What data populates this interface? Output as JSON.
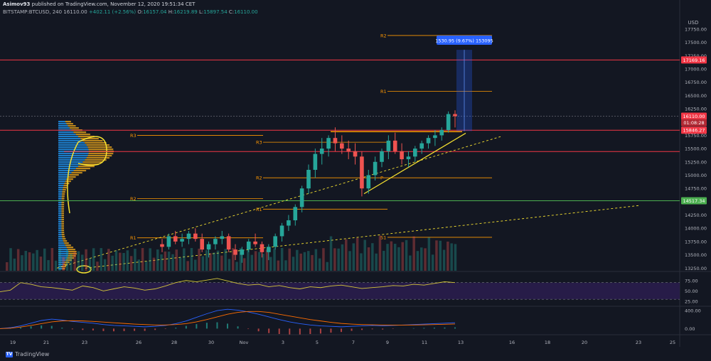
{
  "header": {
    "user": "Asimov93",
    "published": "published on TradingView.com, November 12, 2020 19:51:34 CET",
    "symbol": "BITSTAMP:BTCUSD, 240",
    "last": "16110.00",
    "change": "+402.11 (+2.56%)",
    "o_label": "O:",
    "o": "16157.04",
    "h_label": "H:",
    "h": "16219.89",
    "l_label": "L:",
    "l": "15897.54",
    "c_label": "C:",
    "c": "16110.00"
  },
  "footer": {
    "brand": "TradingView"
  },
  "colors": {
    "background": "#131722",
    "up": "#26a69a",
    "down": "#ef5350",
    "level": "#ff9800",
    "resistance": "#f23645",
    "support": "#4caf50",
    "trend": "#f5e130",
    "volume_profile": "#2196f3",
    "rsi": "#d4c53a",
    "rsi_band": "#2a1d4d",
    "macd": "#2962ff",
    "signal": "#ff6d00"
  },
  "chart_data": [
    {
      "type": "candlestick",
      "currency": "USD",
      "ylim": [
        13200,
        17950
      ],
      "yticks": [
        "17750.00",
        "17500.00",
        "17250.00",
        "17000.00",
        "16750.00",
        "16500.00",
        "16250.00",
        "16000.00",
        "15750.00",
        "15500.00",
        "15250.00",
        "15000.00",
        "14750.00",
        "14500.00",
        "14250.00",
        "14000.00",
        "13750.00",
        "13500.00",
        "13250.00"
      ],
      "x_labels": [
        "19",
        "21",
        "23",
        "26",
        "28",
        "30",
        "Nov",
        "3",
        "5",
        "7",
        "9",
        "11",
        "13",
        "16",
        "18",
        "20",
        "23",
        "25"
      ],
      "ohlc_approx": [
        [
          13700,
          13800,
          13550,
          13650
        ],
        [
          13650,
          13900,
          13600,
          13850
        ],
        [
          13850,
          13950,
          13700,
          13750
        ],
        [
          13750,
          13900,
          13650,
          13800
        ],
        [
          13800,
          13950,
          13700,
          13900
        ],
        [
          13900,
          14000,
          13750,
          13800
        ],
        [
          13800,
          13900,
          13550,
          13600
        ],
        [
          13600,
          13750,
          13450,
          13700
        ],
        [
          13700,
          13850,
          13600,
          13800
        ],
        [
          13800,
          13950,
          13700,
          13850
        ],
        [
          13850,
          13900,
          13550,
          13600
        ],
        [
          13600,
          13700,
          13400,
          13500
        ],
        [
          13500,
          13650,
          13350,
          13600
        ],
        [
          13600,
          13800,
          13550,
          13750
        ],
        [
          13750,
          13900,
          13650,
          13700
        ],
        [
          13700,
          13750,
          13450,
          13550
        ],
        [
          13550,
          13700,
          13400,
          13650
        ],
        [
          13650,
          13900,
          13600,
          13850
        ],
        [
          13850,
          14100,
          13750,
          14050
        ],
        [
          14050,
          14250,
          13950,
          14150
        ],
        [
          14150,
          14450,
          14050,
          14400
        ],
        [
          14400,
          14800,
          14300,
          14750
        ],
        [
          14750,
          15200,
          14650,
          15100
        ],
        [
          15100,
          15500,
          14950,
          15400
        ],
        [
          15400,
          15700,
          15200,
          15500
        ],
        [
          15500,
          15750,
          15350,
          15700
        ],
        [
          15700,
          15900,
          15450,
          15600
        ],
        [
          15600,
          15750,
          15400,
          15500
        ],
        [
          15500,
          15650,
          15300,
          15450
        ],
        [
          15450,
          15600,
          15200,
          15350
        ],
        [
          15350,
          15450,
          14600,
          14750
        ],
        [
          14750,
          15100,
          14650,
          15000
        ],
        [
          15000,
          15350,
          14900,
          15250
        ],
        [
          15250,
          15500,
          15150,
          15450
        ],
        [
          15450,
          15750,
          15300,
          15650
        ],
        [
          15650,
          15800,
          15400,
          15450
        ],
        [
          15450,
          15600,
          15200,
          15300
        ],
        [
          15300,
          15450,
          15150,
          15350
        ],
        [
          15350,
          15550,
          15250,
          15500
        ],
        [
          15500,
          15650,
          15400,
          15600
        ],
        [
          15600,
          15750,
          15500,
          15700
        ],
        [
          15700,
          15850,
          15550,
          15750
        ],
        [
          15750,
          15900,
          15650,
          15850
        ],
        [
          15850,
          16200,
          15800,
          16150
        ],
        [
          16150,
          16220,
          15897,
          16110
        ]
      ],
      "last_price": "16110.00",
      "last_price_timer": "01:08:28",
      "resistance_price": "17169.16",
      "zone_price": "15846.27",
      "support_price": "14517.34",
      "measure_label": "1530.95 (9.67%) 153095",
      "annotations": [
        "R3",
        "R2",
        "R1",
        "P",
        "S1",
        "R3",
        "R2",
        "R1",
        "P",
        "S1",
        "R2",
        "R1",
        "P",
        "S1"
      ]
    },
    {
      "type": "line",
      "name": "RSI",
      "yticks": [
        "75.00",
        "50.00",
        "25.00"
      ],
      "ylim": [
        15,
        95
      ],
      "values": [
        48,
        52,
        70,
        66,
        60,
        58,
        55,
        52,
        62,
        58,
        50,
        55,
        60,
        57,
        52,
        55,
        62,
        70,
        75,
        72,
        76,
        80,
        74,
        68,
        64,
        66,
        60,
        63,
        58,
        55,
        60,
        58,
        62,
        64,
        60,
        56,
        58,
        60,
        63,
        62,
        66,
        64,
        68,
        72,
        70
      ]
    },
    {
      "type": "line",
      "name": "MACD",
      "yticks": [
        "400.00",
        "0.00"
      ],
      "ylim": [
        -120,
        480
      ],
      "macd": [
        0,
        20,
        60,
        120,
        180,
        210,
        190,
        160,
        140,
        120,
        90,
        70,
        60,
        50,
        40,
        50,
        70,
        110,
        170,
        250,
        330,
        400,
        430,
        410,
        370,
        320,
        260,
        200,
        150,
        110,
        80,
        60,
        50,
        40,
        50,
        60,
        70,
        60,
        70,
        80,
        90,
        100,
        110,
        120,
        130
      ],
      "signal": [
        0,
        10,
        35,
        70,
        110,
        150,
        170,
        175,
        170,
        160,
        145,
        130,
        115,
        100,
        90,
        80,
        80,
        90,
        110,
        150,
        200,
        260,
        320,
        360,
        380,
        380,
        360,
        320,
        280,
        240,
        200,
        170,
        140,
        115,
        100,
        90,
        85,
        80,
        78,
        79,
        81,
        85,
        90,
        96,
        102
      ]
    }
  ]
}
